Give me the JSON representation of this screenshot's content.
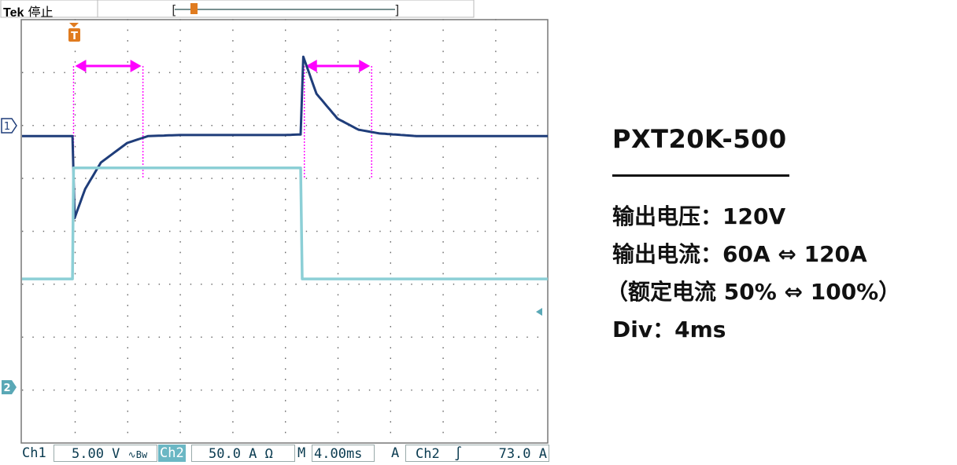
{
  "header": {
    "brand": "Tek",
    "status": "停止"
  },
  "statusbar": {
    "ch1_label": "Ch1",
    "ch1_scale": "5.00 V",
    "ch1_coupling": "∿Bw",
    "ch2_label": "Ch2",
    "ch2_scale": "50.0 A Ω",
    "time_prefix": "M",
    "time_scale": "4.00ms",
    "trig_prefix": "A",
    "trig_source": "Ch2",
    "trig_slope": "∫",
    "trig_level": "73.0 A"
  },
  "markers": {
    "trigger": "T",
    "ch1": "1",
    "ch2": "2"
  },
  "panel": {
    "model": "PXT20K-500",
    "line1": "输出电压：120V",
    "line2": "输出电流：60A ⇔ 120A",
    "line3": "（额定电流 50% ⇔ 100%）",
    "line4": "Div：4ms"
  },
  "colors": {
    "ch1": "#1f3d7a",
    "ch2": "#8ccfd6",
    "cursor": "#ff00ff",
    "trigger": "#e07b1f"
  },
  "chart_data": {
    "type": "line",
    "grid": true,
    "x_divisions": 10,
    "y_divisions": 8,
    "time_per_div_ms": 4,
    "series": [
      {
        "name": "Ch1",
        "x": [
          0,
          0.96,
          1.0,
          1.2,
          1.5,
          2.0,
          2.4,
          3.0,
          4.0,
          5.0,
          5.3,
          5.35,
          5.6,
          6.0,
          6.4,
          6.8,
          7.5,
          8.5,
          10
        ],
        "y": [
          1.8,
          1.8,
          0.25,
          0.8,
          1.3,
          1.67,
          1.8,
          1.82,
          1.82,
          1.82,
          1.83,
          3.3,
          2.6,
          2.13,
          1.92,
          1.85,
          1.8,
          1.8,
          1.8
        ]
      },
      {
        "name": "Ch2",
        "x": [
          0,
          0.96,
          0.98,
          5.3,
          5.33,
          10
        ],
        "y": [
          -0.9,
          -0.9,
          1.2,
          1.2,
          -0.9,
          -0.9
        ]
      }
    ],
    "cursors": [
      {
        "x1": 0.98,
        "x2": 2.3
      },
      {
        "x1": 5.37,
        "x2": 6.65
      }
    ]
  }
}
